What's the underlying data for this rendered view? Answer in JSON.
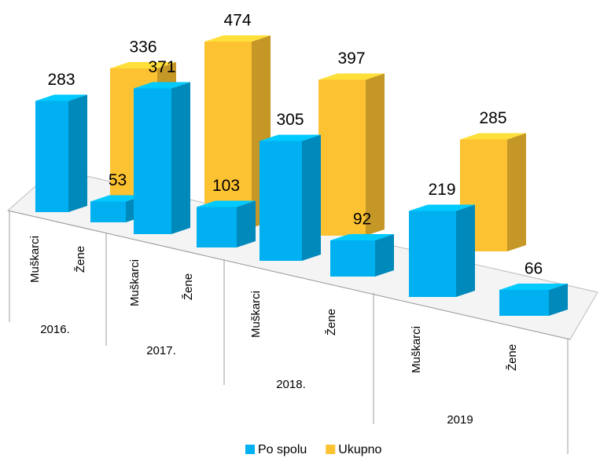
{
  "chart_data": {
    "type": "bar3d",
    "groups": [
      "2016.",
      "2017.",
      "2018.",
      "2019"
    ],
    "categories": [
      "Muškarci",
      "Žene",
      "Muškarci",
      "Žene",
      "Muškarci",
      "Žene",
      "Muškarci",
      "Žene"
    ],
    "series": [
      {
        "name": "Po spolu",
        "color": "#00b0f0",
        "values": [
          283,
          53,
          371,
          103,
          305,
          92,
          219,
          66
        ]
      },
      {
        "name": "Ukupno",
        "color": "#fcc232",
        "values": [
          null,
          336,
          null,
          474,
          null,
          397,
          null,
          285
        ]
      }
    ]
  }
}
